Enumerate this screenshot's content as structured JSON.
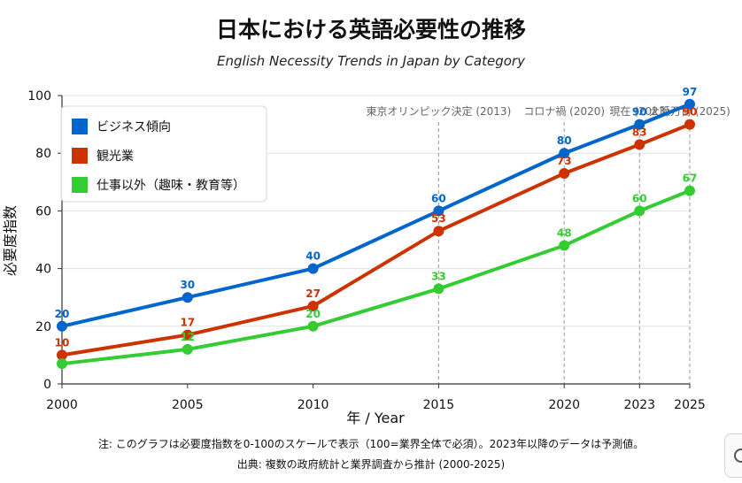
{
  "chart_data": {
    "type": "line",
    "title": "日本における英語必要性の推移",
    "subtitle": "English Necessity Trends in Japan by Category",
    "xlabel": "年 / Year",
    "ylabel": "必要度指数",
    "x": [
      2000,
      2005,
      2010,
      2015,
      2020,
      2023,
      2025
    ],
    "xlim": [
      2000,
      2025
    ],
    "ylim": [
      0,
      100
    ],
    "yticks": [
      0,
      20,
      40,
      60,
      80,
      100
    ],
    "grid": true,
    "legend_position": "top-left",
    "series": [
      {
        "name": "ビジネス傾向",
        "color": "#0066cc",
        "values": [
          20,
          30,
          40,
          60,
          80,
          90,
          97
        ],
        "labels": [
          "20",
          "30",
          "40",
          "60",
          "80",
          "90",
          "97"
        ]
      },
      {
        "name": "観光業",
        "color": "#cc3300",
        "values": [
          10,
          17,
          27,
          53,
          73,
          83,
          90
        ],
        "labels": [
          "10",
          "17",
          "27",
          "53",
          "73",
          "83",
          "90"
        ]
      },
      {
        "name": "仕事以外（趣味・教育等）",
        "color": "#33cc33",
        "values": [
          7,
          12,
          20,
          33,
          48,
          60,
          67
        ],
        "labels": [
          "",
          "12",
          "20",
          "33",
          "48",
          "60",
          "67"
        ]
      }
    ],
    "annotations": [
      {
        "x": 2015,
        "text": "東京オリンピック決定 (2013)"
      },
      {
        "x": 2020,
        "text": "コロナ禍 (2020)"
      },
      {
        "x": 2023,
        "text": "現在 (2023)"
      },
      {
        "x": 2025,
        "text": "大阪万博 (2025)"
      }
    ]
  },
  "footnote": "注: このグラフは必要度指数を0-100のスケールで表示（100=業界全体で必須）。2023年以降のデータは予測値。",
  "source": "出典: 複数の政府統計と業界調査から推計 (2000-2025)"
}
